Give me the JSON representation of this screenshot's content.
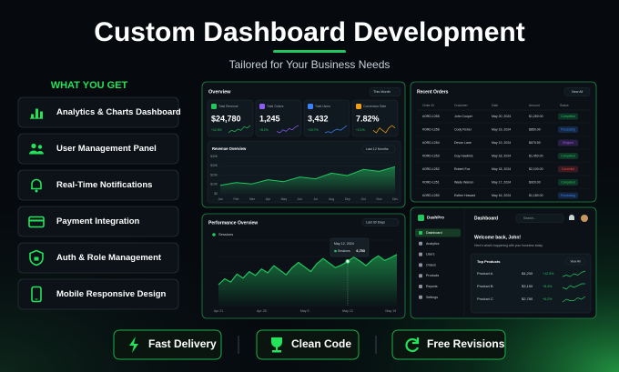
{
  "header": {
    "title": "Custom Dashboard Development",
    "subtitle": "Tailored for Your Business Needs"
  },
  "features": {
    "heading": "WHAT YOU GET",
    "items": [
      "Analytics & Charts Dashboard",
      "User Management Panel",
      "Real-Time Notifications",
      "Payment Integration",
      "Auth & Role Management",
      "Mobile Responsive Design"
    ]
  },
  "overview": {
    "title": "Overview",
    "period": "This Month",
    "kpis": [
      {
        "label": "Total Revenue",
        "value": "$24,780",
        "change": "+12.5%",
        "color": "#22c55e",
        "spark": [
          3,
          5,
          4,
          6,
          5,
          8,
          7,
          9
        ]
      },
      {
        "label": "Total Orders",
        "value": "1,245",
        "change": "+8.2%",
        "color": "#8b5cf6",
        "spark": [
          4,
          3,
          5,
          4,
          6,
          5,
          7,
          8
        ]
      },
      {
        "label": "Total Users",
        "value": "3,432",
        "change": "+10.7%",
        "color": "#3b82f6",
        "spark": [
          3,
          4,
          3,
          5,
          6,
          5,
          7,
          9
        ]
      },
      {
        "label": "Conversion Rate",
        "value": "7.82%",
        "change": "+2.1%",
        "color": "#f59e0b",
        "spark": [
          5,
          4,
          6,
          5,
          4,
          6,
          7,
          6
        ]
      }
    ],
    "revenue": {
      "title": "Revenue Overview",
      "period": "Last 12 Months",
      "categories": [
        "Jan",
        "Feb",
        "Mar",
        "Apr",
        "May",
        "Jun",
        "Jul",
        "Aug",
        "Sep",
        "Oct",
        "Nov",
        "Dec"
      ],
      "values": [
        9000,
        12000,
        10500,
        15000,
        13000,
        18000,
        16000,
        22000,
        19500,
        26000,
        24000,
        29000
      ],
      "ylim": [
        0,
        40000
      ],
      "yticks": [
        {
          "value": 0,
          "label": "$0"
        },
        {
          "value": 10000,
          "label": "$10K"
        },
        {
          "value": 20000,
          "label": "$20K"
        },
        {
          "value": 30000,
          "label": "$30K"
        },
        {
          "value": 40000,
          "label": "$40K"
        }
      ]
    }
  },
  "orders": {
    "title": "Recent Orders",
    "action": "View All",
    "columns": [
      "Order ID",
      "Customer",
      "Date",
      "Amount",
      "Status"
    ],
    "rows": [
      [
        "#ORD-1255",
        "John Cooper",
        "May 20, 2024",
        "$1,250.00",
        "Completed"
      ],
      [
        "#ORD-1256",
        "Cody Fisher",
        "May 19, 2024",
        "$850.00",
        "Processing"
      ],
      [
        "#ORD-1254",
        "Devon Lane",
        "May 19, 2024",
        "$675.50",
        "Shipped"
      ],
      [
        "#ORD-1253",
        "Guy Hawkins",
        "May 18, 2024",
        "$1,450.00",
        "Completed"
      ],
      [
        "#ORD-1252",
        "Robert Fox",
        "May 18, 2024",
        "$2,100.00",
        "Cancelled"
      ],
      [
        "#ORD-1251",
        "Wade Warren",
        "May 17, 2024",
        "$920.00",
        "Completed"
      ],
      [
        "#ORD-1250",
        "Esther Howard",
        "May 16, 2024",
        "$1,180.00",
        "Processing"
      ]
    ],
    "status_colors": {
      "Completed": "#22c55e",
      "Processing": "#3b82f6",
      "Shipped": "#a855f7",
      "Cancelled": "#ef4444"
    }
  },
  "performance": {
    "title": "Performance Overview",
    "period": "Last 30 Days",
    "legend": "Sessions",
    "color": "#22c55e",
    "categories": [
      "Apr 21",
      null,
      null,
      null,
      null,
      null,
      null,
      "Apr 28",
      null,
      null,
      null,
      null,
      null,
      null,
      "May 5",
      null,
      null,
      null,
      null,
      null,
      null,
      "May 12",
      null,
      null,
      null,
      null,
      null,
      null,
      "May 19",
      null
    ],
    "values": [
      3200,
      4100,
      3600,
      4800,
      4200,
      5200,
      4600,
      5600,
      5000,
      6100,
      5400,
      4700,
      5800,
      6600,
      5900,
      5200,
      6400,
      7200,
      6500,
      5800,
      6200,
      6753,
      7400,
      6800,
      6100,
      7000,
      7600,
      6900,
      7300,
      7800
    ],
    "ylim": [
      0,
      10000
    ],
    "tooltip": {
      "date": "May 12, 2024",
      "value_label": "6,753"
    }
  },
  "app": {
    "brand": "DashPro",
    "menu": [
      "Dashboard",
      "Analytics",
      "Users",
      "Orders",
      "Products",
      "Reports",
      "Settings"
    ],
    "page": "Dashboard",
    "search": "Search...",
    "welcome": "Welcome back, John!",
    "welcome_sub": "Here's what's happening with your business today.",
    "products_title": "Top Products",
    "products_action": "View All",
    "products": [
      {
        "name": "Product A",
        "value": "$4,200",
        "change": "+12.5%",
        "spark": [
          3,
          4,
          3,
          5,
          4,
          6,
          7
        ]
      },
      {
        "name": "Product B",
        "value": "$3,150",
        "change": "+8.4%",
        "spark": [
          4,
          3,
          5,
          4,
          5,
          6,
          6
        ]
      },
      {
        "name": "Product C",
        "value": "$2,780",
        "change": "+6.2%",
        "spark": [
          3,
          5,
          4,
          4,
          6,
          5,
          7
        ]
      }
    ]
  },
  "badges": [
    "Fast Delivery",
    "Clean Code",
    "Free Revisions"
  ]
}
